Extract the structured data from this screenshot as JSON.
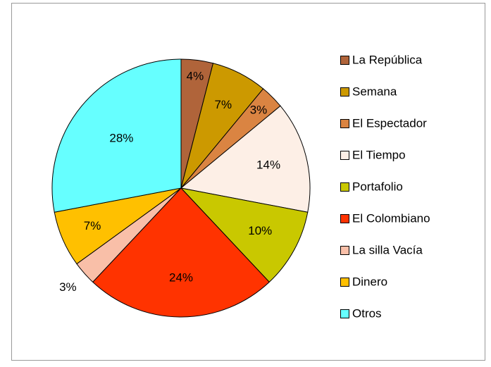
{
  "chart_data": {
    "type": "pie",
    "categories": [
      "La República",
      "Semana",
      "El Espectador",
      "El Tiempo",
      "Portafolio",
      "El Colombiano",
      "La silla Vacía",
      "Dinero",
      "Otros"
    ],
    "values": [
      4,
      7,
      3,
      14,
      10,
      24,
      3,
      7,
      28
    ],
    "value_labels": [
      "4%",
      "7%",
      "3%",
      "14%",
      "10%",
      "24%",
      "3%",
      "7%",
      "28%"
    ],
    "colors": [
      "#b0643a",
      "#cc9900",
      "#da8442",
      "#fdefe6",
      "#c9c800",
      "#ff3300",
      "#f9bfa8",
      "#ffc000",
      "#66ffff"
    ],
    "legend": "right"
  }
}
